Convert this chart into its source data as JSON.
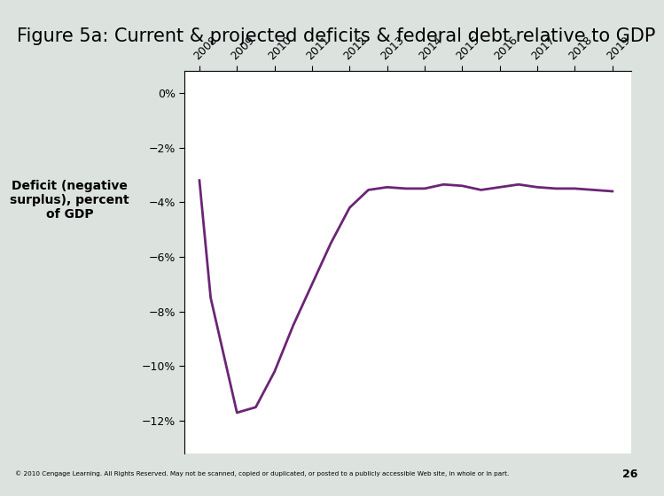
{
  "title": "Figure 5a: Current & projected deficits & federal debt relative to GDP",
  "title_fontsize": 15,
  "title_bg_color": "#d0d8d4",
  "chart_bg_color": "#dce3df",
  "plot_bg_color": "#ffffff",
  "footer_text": "© 2010 Cengage Learning. All Rights Reserved. May not be scanned, copied or duplicated, or posted to a publicly accessible Web site, in whole or in part.",
  "footer_page": "26",
  "ylabel": "Deficit (negative\nsurplus), percent\nof GDP",
  "ylabel_fontsize": 10,
  "line_color": "#6b2575",
  "line_width": 2.0,
  "years": [
    2008,
    2008.3,
    2009,
    2009.5,
    2010,
    2010.5,
    2011,
    2011.5,
    2012,
    2012.5,
    2013,
    2013.5,
    2014,
    2014.5,
    2015,
    2015.5,
    2016,
    2016.5,
    2017,
    2017.5,
    2018,
    2018.5,
    2019
  ],
  "values": [
    -3.2,
    -7.5,
    -11.7,
    -11.5,
    -10.2,
    -8.5,
    -7.0,
    -5.5,
    -4.2,
    -3.55,
    -3.45,
    -3.5,
    -3.5,
    -3.35,
    -3.4,
    -3.55,
    -3.45,
    -3.35,
    -3.45,
    -3.5,
    -3.5,
    -3.55,
    -3.6
  ],
  "yticks": [
    0,
    -2,
    -4,
    -6,
    -8,
    -10,
    -12
  ],
  "ytick_labels": [
    "0%",
    "−2%",
    "−4%",
    "−6%",
    "−8%",
    "−10%",
    "−12%"
  ],
  "ylim": [
    -13.2,
    0.8
  ],
  "xlim_left": 2007.6,
  "xlim_right": 2019.5,
  "xtick_positions": [
    2008,
    2009,
    2010,
    2011,
    2012,
    2013,
    2014,
    2015,
    2016,
    2017,
    2018,
    2019
  ],
  "xtick_labels": [
    "2008",
    "2009",
    "2010",
    "2011",
    "2012",
    "2013",
    "2014",
    "2015",
    "2016",
    "2017",
    "2018",
    "2019"
  ]
}
